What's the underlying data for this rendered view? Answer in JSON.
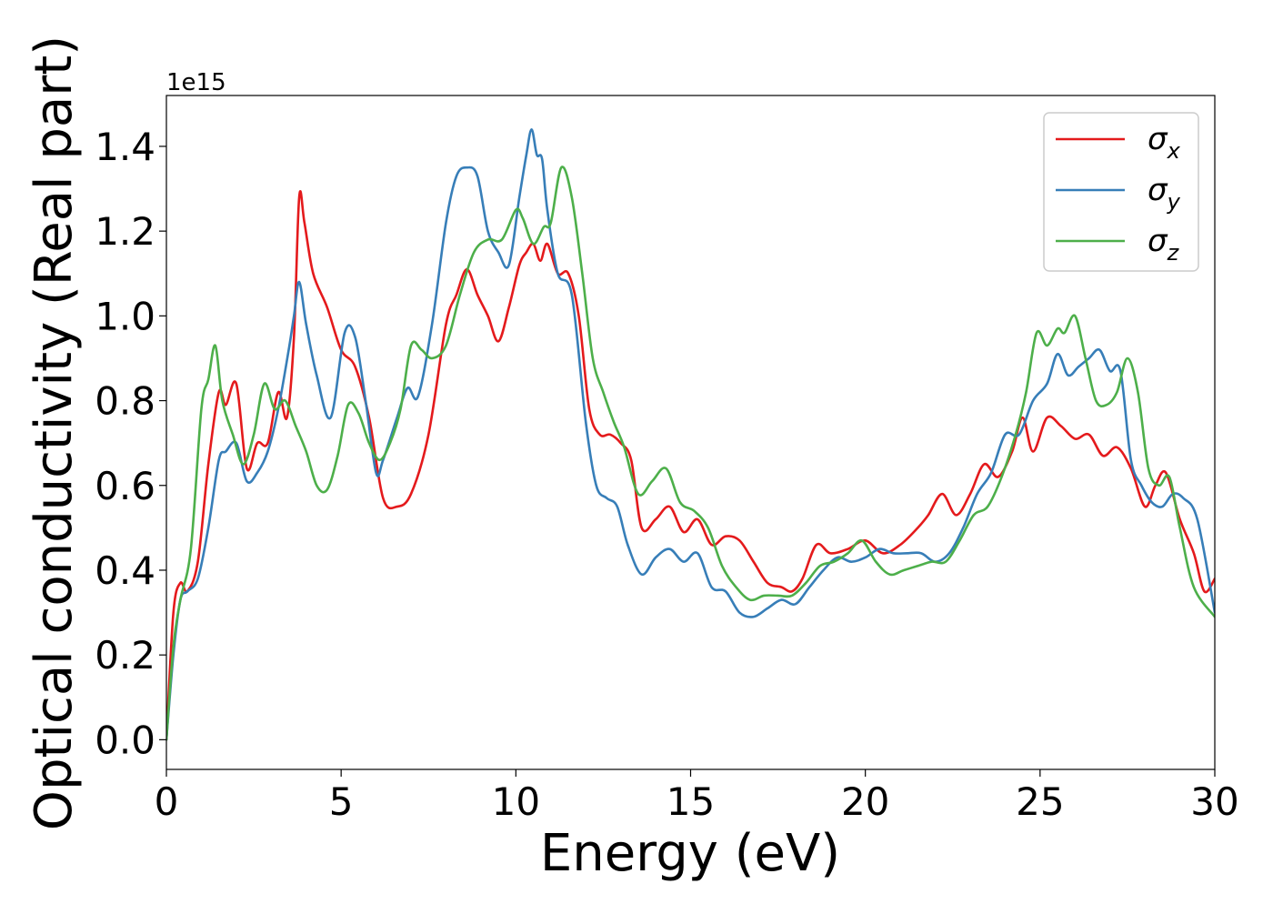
{
  "chart_data": {
    "type": "line",
    "title": "",
    "xlabel": "Energy (eV)",
    "ylabel": "Optical conductivity (Real part)",
    "y_offset_label": "1e15",
    "y_scale": 1000000000000000.0,
    "xlim": [
      0,
      30
    ],
    "ylim": [
      -0.07,
      1.52
    ],
    "xticks": [
      0,
      5,
      10,
      15,
      20,
      25,
      30
    ],
    "xtick_labels": [
      "0",
      "5",
      "10",
      "15",
      "20",
      "25",
      "30"
    ],
    "yticks": [
      0.0,
      0.2,
      0.4,
      0.6,
      0.8,
      1.0,
      1.2,
      1.4
    ],
    "ytick_labels": [
      "0.0",
      "0.2",
      "0.4",
      "0.6",
      "0.8",
      "1.0",
      "1.2",
      "1.4"
    ],
    "grid": false,
    "legend_position": "top-right",
    "series": [
      {
        "name": "σx",
        "legend_base": "σ",
        "legend_sub": "x",
        "color": "#e41a1c",
        "x": [
          0,
          0.2,
          0.4,
          0.6,
          0.9,
          1.2,
          1.5,
          1.7,
          2.0,
          2.3,
          2.6,
          2.9,
          3.2,
          3.45,
          3.65,
          3.8,
          3.95,
          4.2,
          4.6,
          5.0,
          5.4,
          5.8,
          6.2,
          6.6,
          7.0,
          7.5,
          8.0,
          8.3,
          8.6,
          8.9,
          9.2,
          9.5,
          9.8,
          10.1,
          10.3,
          10.5,
          10.7,
          10.9,
          11.2,
          11.5,
          11.8,
          12.1,
          12.4,
          12.7,
          13.0,
          13.3,
          13.6,
          14.0,
          14.4,
          14.8,
          15.2,
          15.6,
          16.0,
          16.4,
          16.8,
          17.2,
          17.6,
          17.9,
          18.2,
          18.6,
          19.0,
          19.5,
          20.0,
          20.5,
          21.0,
          21.5,
          21.8,
          22.2,
          22.6,
          23.0,
          23.4,
          23.8,
          24.2,
          24.5,
          24.8,
          25.2,
          25.6,
          26.0,
          26.4,
          26.8,
          27.2,
          27.6,
          28.0,
          28.3,
          28.6,
          29.0,
          29.4,
          29.7,
          30.0
        ],
        "y": [
          0.0,
          0.3,
          0.37,
          0.35,
          0.42,
          0.65,
          0.82,
          0.79,
          0.84,
          0.64,
          0.7,
          0.7,
          0.82,
          0.76,
          0.95,
          1.28,
          1.22,
          1.1,
          1.02,
          0.92,
          0.88,
          0.76,
          0.57,
          0.55,
          0.58,
          0.72,
          0.98,
          1.05,
          1.11,
          1.05,
          1.0,
          0.94,
          1.02,
          1.12,
          1.15,
          1.17,
          1.13,
          1.17,
          1.1,
          1.1,
          1.0,
          0.78,
          0.72,
          0.72,
          0.7,
          0.66,
          0.5,
          0.52,
          0.55,
          0.49,
          0.52,
          0.46,
          0.48,
          0.47,
          0.42,
          0.37,
          0.36,
          0.35,
          0.38,
          0.46,
          0.44,
          0.45,
          0.47,
          0.44,
          0.46,
          0.5,
          0.53,
          0.58,
          0.53,
          0.58,
          0.65,
          0.62,
          0.68,
          0.76,
          0.68,
          0.76,
          0.74,
          0.71,
          0.72,
          0.67,
          0.69,
          0.64,
          0.55,
          0.6,
          0.63,
          0.52,
          0.44,
          0.35,
          0.38
        ]
      },
      {
        "name": "σy",
        "legend_base": "σ",
        "legend_sub": "y",
        "color": "#377eb8",
        "x": [
          0,
          0.2,
          0.4,
          0.6,
          0.9,
          1.2,
          1.5,
          1.7,
          2.0,
          2.3,
          2.6,
          2.9,
          3.2,
          3.5,
          3.65,
          3.8,
          4.0,
          4.3,
          4.7,
          5.1,
          5.4,
          5.7,
          6.0,
          6.2,
          6.6,
          6.9,
          7.2,
          7.6,
          8.0,
          8.3,
          8.6,
          8.9,
          9.2,
          9.5,
          9.8,
          10.1,
          10.3,
          10.45,
          10.6,
          10.75,
          10.9,
          11.2,
          11.6,
          12.0,
          12.3,
          12.6,
          12.9,
          13.2,
          13.6,
          14.0,
          14.4,
          14.8,
          15.2,
          15.6,
          16.0,
          16.4,
          16.8,
          17.2,
          17.6,
          18.0,
          18.4,
          18.8,
          19.2,
          19.6,
          20.0,
          20.4,
          20.8,
          21.2,
          21.6,
          22.0,
          22.4,
          22.8,
          23.2,
          23.6,
          24.0,
          24.4,
          24.8,
          25.2,
          25.5,
          25.8,
          26.1,
          26.4,
          26.7,
          27.0,
          27.3,
          27.6,
          27.9,
          28.2,
          28.5,
          28.8,
          29.1,
          29.5,
          30.0
        ],
        "y": [
          0.0,
          0.2,
          0.33,
          0.35,
          0.38,
          0.5,
          0.66,
          0.68,
          0.7,
          0.61,
          0.63,
          0.68,
          0.78,
          0.92,
          1.0,
          1.08,
          0.98,
          0.86,
          0.76,
          0.96,
          0.95,
          0.8,
          0.63,
          0.66,
          0.76,
          0.83,
          0.81,
          0.98,
          1.22,
          1.33,
          1.35,
          1.33,
          1.2,
          1.15,
          1.12,
          1.28,
          1.38,
          1.44,
          1.38,
          1.37,
          1.25,
          1.1,
          1.05,
          0.75,
          0.6,
          0.57,
          0.55,
          0.46,
          0.39,
          0.43,
          0.45,
          0.42,
          0.44,
          0.36,
          0.35,
          0.3,
          0.29,
          0.31,
          0.33,
          0.32,
          0.36,
          0.4,
          0.43,
          0.42,
          0.43,
          0.45,
          0.44,
          0.44,
          0.44,
          0.42,
          0.44,
          0.5,
          0.58,
          0.63,
          0.72,
          0.72,
          0.8,
          0.84,
          0.91,
          0.86,
          0.88,
          0.9,
          0.92,
          0.87,
          0.87,
          0.66,
          0.6,
          0.56,
          0.55,
          0.58,
          0.57,
          0.52,
          0.3
        ]
      },
      {
        "name": "σz",
        "legend_base": "σ",
        "legend_sub": "z",
        "color": "#4daf4a",
        "x": [
          0,
          0.2,
          0.4,
          0.7,
          1.0,
          1.2,
          1.4,
          1.6,
          1.9,
          2.2,
          2.5,
          2.8,
          3.1,
          3.4,
          3.7,
          4.0,
          4.3,
          4.6,
          4.9,
          5.2,
          5.5,
          5.8,
          6.1,
          6.4,
          6.7,
          7.0,
          7.3,
          7.6,
          8.0,
          8.4,
          8.8,
          9.2,
          9.6,
          10.0,
          10.2,
          10.5,
          10.8,
          11.0,
          11.3,
          11.6,
          11.9,
          12.2,
          12.5,
          12.8,
          13.1,
          13.5,
          13.9,
          14.3,
          14.7,
          15.1,
          15.5,
          15.9,
          16.3,
          16.7,
          17.1,
          17.5,
          17.9,
          18.3,
          18.7,
          19.1,
          19.5,
          19.9,
          20.3,
          20.7,
          21.1,
          21.5,
          21.9,
          22.3,
          22.7,
          23.1,
          23.5,
          23.9,
          24.3,
          24.6,
          24.9,
          25.2,
          25.5,
          25.7,
          26.0,
          26.3,
          26.6,
          26.9,
          27.2,
          27.5,
          27.8,
          28.1,
          28.4,
          28.7,
          29.0,
          29.4,
          30.0
        ],
        "y": [
          0.0,
          0.22,
          0.33,
          0.45,
          0.78,
          0.85,
          0.93,
          0.8,
          0.72,
          0.65,
          0.72,
          0.84,
          0.78,
          0.8,
          0.74,
          0.68,
          0.6,
          0.59,
          0.67,
          0.79,
          0.77,
          0.7,
          0.66,
          0.7,
          0.78,
          0.93,
          0.92,
          0.9,
          0.93,
          1.05,
          1.15,
          1.18,
          1.18,
          1.25,
          1.23,
          1.17,
          1.21,
          1.22,
          1.35,
          1.28,
          1.1,
          0.9,
          0.82,
          0.75,
          0.69,
          0.58,
          0.61,
          0.64,
          0.56,
          0.54,
          0.5,
          0.41,
          0.36,
          0.33,
          0.34,
          0.34,
          0.34,
          0.37,
          0.41,
          0.42,
          0.44,
          0.47,
          0.42,
          0.39,
          0.4,
          0.41,
          0.42,
          0.42,
          0.47,
          0.53,
          0.55,
          0.62,
          0.72,
          0.82,
          0.96,
          0.93,
          0.97,
          0.96,
          1.0,
          0.9,
          0.8,
          0.79,
          0.82,
          0.9,
          0.82,
          0.64,
          0.6,
          0.62,
          0.5,
          0.36,
          0.29
        ]
      }
    ]
  }
}
